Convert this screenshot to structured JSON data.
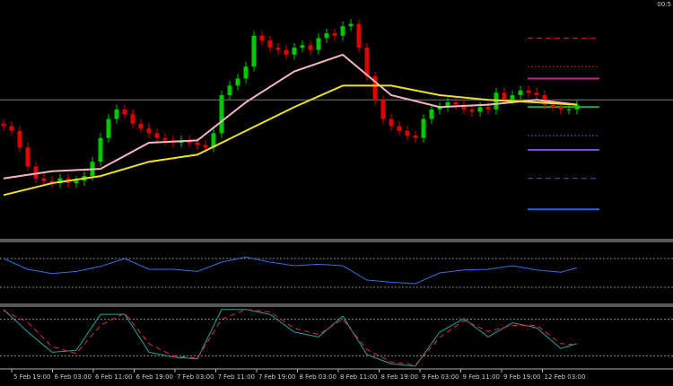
{
  "clock": "00:5",
  "time_labels": [
    "5 Feb 19:00",
    "6 Feb 03:00",
    "6 Feb 11:00",
    "6 Feb 19:00",
    "7 Feb 03:00",
    "7 Feb 11:00",
    "7 Feb 19:00",
    "8 Feb 03:00",
    "8 Feb 11:00",
    "8 Feb 19:00",
    "9 Feb 03:00",
    "9 Feb 11:00",
    "9 Feb 19:00",
    "12 Feb 03:00"
  ],
  "chart_data": [
    {
      "type": "candlestick",
      "ylim": [
        0,
        100
      ],
      "up_color": "#00c800",
      "down_color": "#e00000",
      "open": [
        48,
        47,
        45,
        38,
        30,
        25,
        24,
        23,
        25,
        23,
        24,
        26,
        32,
        42,
        50,
        54,
        52,
        48,
        46,
        44,
        42,
        41,
        40,
        41,
        40,
        39,
        38,
        44,
        60,
        64,
        67,
        72,
        85,
        83,
        80,
        79,
        77,
        80,
        81,
        79,
        84,
        86,
        85,
        89,
        90,
        80,
        68,
        58,
        50,
        47,
        45,
        43,
        42,
        50,
        54,
        55,
        57,
        56,
        54,
        53,
        55,
        54,
        61,
        58,
        60,
        62,
        61,
        60,
        56,
        55,
        54,
        54
      ],
      "high": [
        50,
        49,
        47,
        40,
        32,
        27,
        26,
        27,
        27,
        26,
        28,
        34,
        44,
        52,
        56,
        56,
        54,
        50,
        48,
        46,
        44,
        43,
        43,
        43,
        42,
        41,
        46,
        62,
        66,
        69,
        74,
        87,
        87,
        85,
        82,
        81,
        82,
        83,
        83,
        86,
        88,
        88,
        91,
        92,
        92,
        82,
        70,
        60,
        52,
        49,
        47,
        45,
        52,
        56,
        57,
        59,
        59,
        58,
        56,
        57,
        57,
        63,
        63,
        62,
        64,
        64,
        63,
        62,
        58,
        57,
        56,
        58
      ],
      "low": [
        45,
        43,
        36,
        28,
        23,
        22,
        21,
        21,
        21,
        21,
        22,
        24,
        30,
        40,
        48,
        50,
        46,
        44,
        42,
        40,
        39,
        38,
        38,
        38,
        37,
        36,
        36,
        42,
        58,
        62,
        65,
        70,
        81,
        78,
        77,
        75,
        75,
        78,
        77,
        77,
        82,
        83,
        83,
        87,
        78,
        66,
        56,
        48,
        45,
        43,
        41,
        40,
        40,
        48,
        52,
        53,
        54,
        52,
        51,
        51,
        52,
        52,
        56,
        56,
        58,
        59,
        58,
        54,
        53,
        52,
        52,
        52
      ],
      "close": [
        47,
        45,
        38,
        30,
        25,
        24,
        23,
        25,
        23,
        24,
        26,
        32,
        42,
        50,
        54,
        52,
        48,
        46,
        44,
        42,
        41,
        40,
        41,
        40,
        39,
        38,
        44,
        60,
        64,
        67,
        72,
        85,
        83,
        80,
        79,
        77,
        80,
        81,
        79,
        84,
        86,
        85,
        89,
        90,
        80,
        68,
        58,
        50,
        47,
        45,
        43,
        42,
        50,
        54,
        55,
        57,
        56,
        54,
        53,
        55,
        54,
        61,
        58,
        60,
        62,
        61,
        60,
        56,
        55,
        54,
        54,
        56
      ],
      "overlays": [
        {
          "color": "#f4b6c2",
          "x": [
            0,
            6,
            12,
            18,
            24,
            30,
            36,
            42,
            48,
            54,
            60,
            66,
            71
          ],
          "values": [
            25,
            28,
            29,
            40,
            41,
            57,
            70,
            77,
            60,
            55,
            56,
            58,
            56
          ]
        },
        {
          "color": "#f0e020",
          "x": [
            0,
            6,
            12,
            18,
            24,
            30,
            36,
            42,
            48,
            54,
            60,
            66,
            71
          ],
          "values": [
            18,
            23,
            26,
            32,
            35,
            45,
            55,
            64,
            64,
            60,
            58,
            57,
            56
          ]
        }
      ],
      "price_line": {
        "value": 58,
        "color": "#7a7a7a"
      },
      "levels": [
        {
          "value": 84,
          "color": "#c02030",
          "dash": "dashed"
        },
        {
          "value": 72,
          "color": "#c02030",
          "dash": "dotted"
        },
        {
          "value": 67,
          "color": "#d0208a",
          "dash": "solid"
        },
        {
          "value": 55,
          "color": "#20b040",
          "dash": "solid"
        },
        {
          "value": 43,
          "color": "#4060d0",
          "dash": "dotted"
        },
        {
          "value": 37,
          "color": "#8040e0",
          "dash": "solid"
        },
        {
          "value": 25,
          "color": "#3060d0",
          "dash": "dashed"
        },
        {
          "value": 12,
          "color": "#3060d0",
          "dash": "solid"
        }
      ]
    },
    {
      "type": "line",
      "ylim": [
        10,
        90
      ],
      "levels": [
        70,
        30
      ],
      "x": [
        0,
        3,
        6,
        9,
        12,
        15,
        18,
        21,
        24,
        27,
        30,
        33,
        36,
        39,
        42,
        45,
        48,
        51,
        54,
        57,
        60,
        63,
        66,
        69,
        71
      ],
      "series": [
        {
          "color": "#3070e0",
          "dash": "solid",
          "values": [
            70,
            55,
            49,
            52,
            59,
            70,
            55,
            55,
            52,
            65,
            72,
            65,
            60,
            62,
            60,
            40,
            37,
            35,
            50,
            54,
            55,
            60,
            54,
            51,
            57
          ]
        }
      ]
    },
    {
      "type": "line",
      "ylim": [
        0,
        100
      ],
      "levels": [
        80,
        20
      ],
      "x": [
        0,
        3,
        6,
        9,
        12,
        15,
        18,
        21,
        24,
        27,
        30,
        33,
        36,
        39,
        42,
        45,
        48,
        51,
        54,
        57,
        60,
        63,
        66,
        69,
        71
      ],
      "series": [
        {
          "color": "#20a0a0",
          "dash": "solid",
          "values": [
            96,
            59,
            26,
            29,
            88,
            88,
            26,
            18,
            15,
            96,
            96,
            88,
            59,
            51,
            85,
            22,
            7,
            3,
            59,
            81,
            51,
            74,
            66,
            32,
            40
          ]
        },
        {
          "color": "#e03030",
          "dash": "dashed",
          "values": [
            94,
            75,
            35,
            24,
            70,
            90,
            40,
            20,
            16,
            80,
            96,
            92,
            65,
            55,
            80,
            30,
            10,
            5,
            50,
            78,
            60,
            70,
            70,
            40,
            38
          ]
        }
      ]
    }
  ]
}
